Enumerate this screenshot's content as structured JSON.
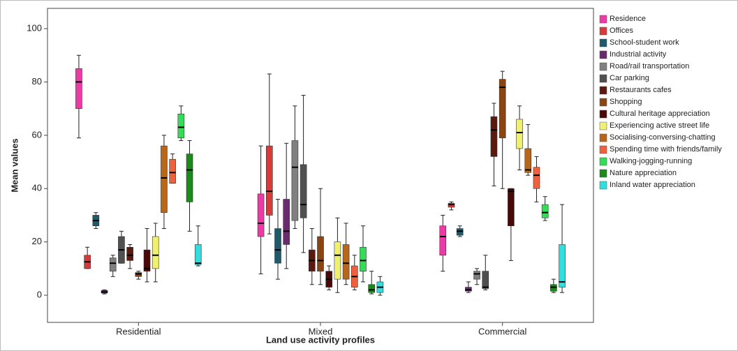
{
  "chart_data": {
    "type": "box",
    "x_label": "Land use activity profiles",
    "y_label": "Mean values",
    "categories": [
      "Residential",
      "Mixed",
      "Commercial"
    ],
    "ylim": [
      -10.2,
      107.6
    ],
    "yticks": [
      0,
      20,
      40,
      60,
      80,
      100
    ],
    "series": [
      {
        "name": "Residence",
        "color": "#ee3aa6",
        "values": [
          {
            "low": 59,
            "q1": 70,
            "median": 80,
            "q3": 85,
            "high": 90
          },
          {
            "low": 8,
            "q1": 22,
            "median": 27,
            "q3": 38,
            "high": 56
          },
          {
            "low": 9,
            "q1": 15,
            "median": 22,
            "q3": 26,
            "high": 30
          }
        ]
      },
      {
        "name": "Offices",
        "color": "#d83a3a",
        "values": [
          {
            "low": 10,
            "q1": 10,
            "median": 12.5,
            "q3": 15,
            "high": 18
          },
          {
            "low": 23,
            "q1": 30,
            "median": 39,
            "q3": 56,
            "high": 83
          },
          {
            "low": 32,
            "q1": 33,
            "median": 34,
            "q3": 34.5,
            "high": 35
          }
        ]
      },
      {
        "name": "School-student work",
        "color": "#1f5a6a",
        "values": [
          {
            "low": 25,
            "q1": 26,
            "median": 28,
            "q3": 30,
            "high": 31
          },
          {
            "low": 6,
            "q1": 12,
            "median": 17,
            "q3": 25,
            "high": 36
          },
          {
            "low": 22,
            "q1": 22.5,
            "median": 24,
            "q3": 25,
            "high": 26
          }
        ]
      },
      {
        "name": "Industrial activity",
        "color": "#6a2a6e",
        "values": [
          {
            "low": 0.5,
            "q1": 0.8,
            "median": 1.2,
            "q3": 1.8,
            "high": 2
          },
          {
            "low": 10,
            "q1": 19,
            "median": 24,
            "q3": 36,
            "high": 57
          },
          {
            "low": 1,
            "q1": 1.5,
            "median": 2,
            "q3": 3,
            "high": 5
          }
        ]
      },
      {
        "name": "Road/rail transportation",
        "color": "#808080",
        "values": [
          {
            "low": 7,
            "q1": 9,
            "median": 12,
            "q3": 14,
            "high": 15
          },
          {
            "low": 25,
            "q1": 28,
            "median": 48,
            "q3": 58,
            "high": 71
          },
          {
            "low": 4,
            "q1": 6,
            "median": 8,
            "q3": 9,
            "high": 10
          }
        ]
      },
      {
        "name": "Car parking",
        "color": "#505050",
        "values": [
          {
            "low": 12,
            "q1": 12,
            "median": 17,
            "q3": 22,
            "high": 24
          },
          {
            "low": 16,
            "q1": 29,
            "median": 34,
            "q3": 49,
            "high": 75
          },
          {
            "low": 2,
            "q1": 2.5,
            "median": 3,
            "q3": 9,
            "high": 15
          }
        ]
      },
      {
        "name": "Restaurants cafes",
        "color": "#5a1a10",
        "values": [
          {
            "low": 10,
            "q1": 13,
            "median": 15,
            "q3": 18,
            "high": 19
          },
          {
            "low": 4,
            "q1": 9,
            "median": 13,
            "q3": 17,
            "high": 25
          },
          {
            "low": 41,
            "q1": 52,
            "median": 62,
            "q3": 67,
            "high": 72
          }
        ]
      },
      {
        "name": "Shopping",
        "color": "#8b4513",
        "values": [
          {
            "low": 6,
            "q1": 7,
            "median": 8,
            "q3": 8.5,
            "high": 9
          },
          {
            "low": 4,
            "q1": 9,
            "median": 13,
            "q3": 22,
            "high": 40
          },
          {
            "low": 40,
            "q1": 59,
            "median": 78,
            "q3": 81,
            "high": 84
          }
        ]
      },
      {
        "name": "Cultural heritage appreciation",
        "color": "#4a0808",
        "values": [
          {
            "low": 5,
            "q1": 9,
            "median": 10,
            "q3": 17,
            "high": 25
          },
          {
            "low": 2,
            "q1": 3,
            "median": 6,
            "q3": 9,
            "high": 11
          },
          {
            "low": 13,
            "q1": 26,
            "median": 39,
            "q3": 40,
            "high": 40
          }
        ]
      },
      {
        "name": "Experiencing active street life",
        "color": "#f0f070",
        "values": [
          {
            "low": 5,
            "q1": 10,
            "median": 15,
            "q3": 22,
            "high": 27
          },
          {
            "low": 1,
            "q1": 6,
            "median": 15,
            "q3": 20,
            "high": 29
          },
          {
            "low": 47,
            "q1": 55,
            "median": 61,
            "q3": 66,
            "high": 71
          }
        ]
      },
      {
        "name": "Socialising-conversing-chatting",
        "color": "#b8661a",
        "values": [
          {
            "low": 25,
            "q1": 31,
            "median": 44,
            "q3": 56,
            "high": 60
          },
          {
            "low": 4,
            "q1": 6,
            "median": 12,
            "q3": 19,
            "high": 27
          },
          {
            "low": 45,
            "q1": 46,
            "median": 47,
            "q3": 55,
            "high": 64
          }
        ]
      },
      {
        "name": "Spending time with friends/family",
        "color": "#f0603a",
        "values": [
          {
            "low": 42,
            "q1": 42,
            "median": 46,
            "q3": 51,
            "high": 53
          },
          {
            "low": 2,
            "q1": 3,
            "median": 7,
            "q3": 11,
            "high": 15
          },
          {
            "low": 35,
            "q1": 40,
            "median": 45,
            "q3": 48,
            "high": 52
          }
        ]
      },
      {
        "name": "Walking-jogging-running",
        "color": "#33dd55",
        "values": [
          {
            "low": 58,
            "q1": 59,
            "median": 63,
            "q3": 68,
            "high": 71
          },
          {
            "low": 5,
            "q1": 9,
            "median": 13,
            "q3": 18,
            "high": 26
          },
          {
            "low": 28,
            "q1": 29,
            "median": 31,
            "q3": 34,
            "high": 37
          }
        ]
      },
      {
        "name": "Nature appreciation",
        "color": "#1a8a1a",
        "values": [
          {
            "low": 24,
            "q1": 35,
            "median": 47,
            "q3": 53,
            "high": 58
          },
          {
            "low": 0.5,
            "q1": 1,
            "median": 2,
            "q3": 4,
            "high": 9
          },
          {
            "low": 1,
            "q1": 1.5,
            "median": 3,
            "q3": 4,
            "high": 6
          }
        ]
      },
      {
        "name": "Inland water appreciation",
        "color": "#33dddd",
        "values": [
          {
            "low": 11,
            "q1": 11.5,
            "median": 12,
            "q3": 19,
            "high": 26
          },
          {
            "low": 0,
            "q1": 1,
            "median": 3,
            "q3": 5,
            "high": 7
          },
          {
            "low": 1,
            "q1": 3,
            "median": 5,
            "q3": 19,
            "high": 34
          }
        ]
      }
    ]
  }
}
